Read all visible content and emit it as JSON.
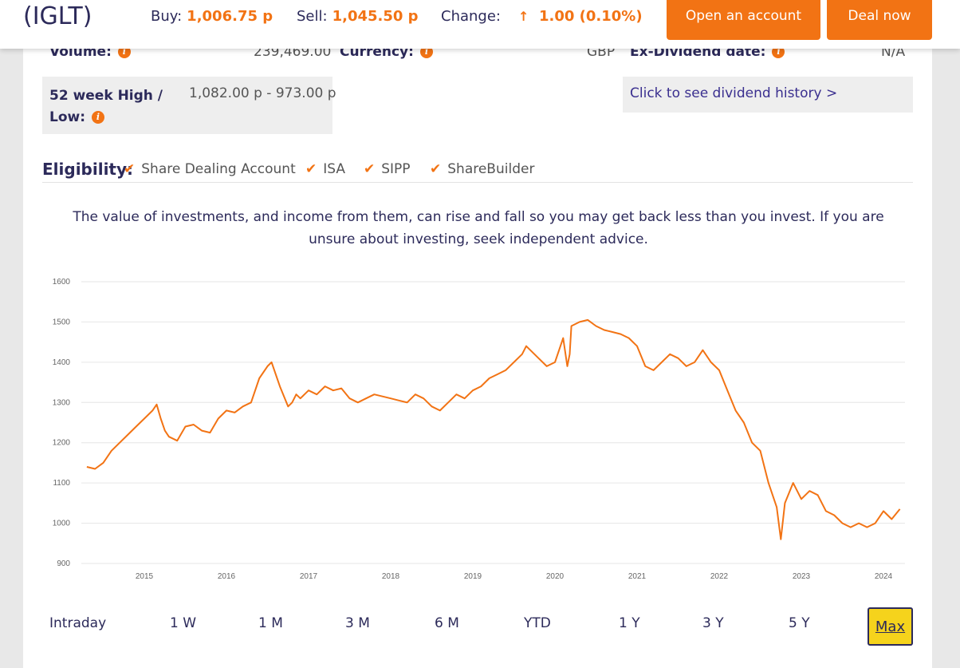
{
  "header": {
    "ticker": "(IGLT)",
    "buy_label": "Buy:",
    "buy_value": "1,006.75 p",
    "sell_label": "Sell:",
    "sell_value": "1,045.50 p",
    "change_label": "Change:",
    "change_value": "1.00 (0.10%)",
    "change_direction": "up",
    "open_account_label": "Open an account",
    "deal_now_label": "Deal now"
  },
  "stats": {
    "volume_label": "Volume:",
    "volume_value": "239,469.00",
    "currency_label": "Currency:",
    "currency_value": "GBP",
    "exdiv_label": "Ex-Dividend date:",
    "exdiv_value": "N/A",
    "week52_label_line1": "52 week High /",
    "week52_label_line2": "Low:",
    "week52_value": "1,082.00 p - 973.00 p",
    "dividend_link": "Click to see dividend history >"
  },
  "eligibility": {
    "label": "Eligibility:",
    "items": [
      "Share Dealing Account",
      "ISA",
      "SIPP",
      "ShareBuilder"
    ]
  },
  "disclaimer": "The value of investments, and income from them, can rise and fall so you may get back less than you invest. If you are unsure about investing, seek independent advice.",
  "ranges": {
    "items": [
      "Intraday",
      "1 W",
      "1 M",
      "3 M",
      "6 M",
      "YTD",
      "1 Y",
      "3 Y",
      "5 Y"
    ],
    "active": "Max"
  },
  "colors": {
    "accent": "#f27314",
    "navy": "#2c2a5a",
    "highlight": "#f5d31c"
  },
  "chart_data": {
    "type": "line",
    "title": "",
    "xlabel": "",
    "ylabel": "",
    "ylim": [
      900,
      1600
    ],
    "yticks": [
      900,
      1000,
      1100,
      1200,
      1300,
      1400,
      1500,
      1600
    ],
    "xticks": [
      "2015",
      "2016",
      "2017",
      "2018",
      "2019",
      "2020",
      "2021",
      "2022",
      "2023",
      "2024"
    ],
    "grid": true,
    "series": [
      {
        "x": [
          2014.3,
          2014.4,
          2014.5,
          2014.6,
          2014.7,
          2014.8,
          2014.9,
          2015.0,
          2015.1,
          2015.15,
          2015.2,
          2015.25,
          2015.3,
          2015.4,
          2015.5,
          2015.6,
          2015.7,
          2015.8,
          2015.9,
          2016.0,
          2016.1,
          2016.2,
          2016.3,
          2016.4,
          2016.5,
          2016.55,
          2016.6,
          2016.65,
          2016.75,
          2016.8,
          2016.85,
          2016.9,
          2017.0,
          2017.1,
          2017.2,
          2017.3,
          2017.4,
          2017.5,
          2017.6,
          2017.7,
          2017.8,
          2017.9,
          2018.0,
          2018.1,
          2018.2,
          2018.3,
          2018.4,
          2018.5,
          2018.6,
          2018.7,
          2018.8,
          2018.9,
          2019.0,
          2019.1,
          2019.2,
          2019.3,
          2019.4,
          2019.5,
          2019.6,
          2019.65,
          2019.7,
          2019.8,
          2019.9,
          2020.0,
          2020.1,
          2020.15,
          2020.18,
          2020.2,
          2020.3,
          2020.4,
          2020.5,
          2020.6,
          2020.7,
          2020.8,
          2020.9,
          2021.0,
          2021.1,
          2021.2,
          2021.3,
          2021.4,
          2021.5,
          2021.6,
          2021.7,
          2021.8,
          2021.9,
          2022.0,
          2022.1,
          2022.2,
          2022.3,
          2022.4,
          2022.5,
          2022.6,
          2022.7,
          2022.75,
          2022.8,
          2022.9,
          2023.0,
          2023.1,
          2023.2,
          2023.3,
          2023.4,
          2023.5,
          2023.6,
          2023.7,
          2023.8,
          2023.9,
          2024.0,
          2024.1,
          2024.2
        ],
        "values": [
          1140,
          1135,
          1150,
          1180,
          1200,
          1220,
          1240,
          1260,
          1280,
          1295,
          1260,
          1230,
          1215,
          1205,
          1240,
          1245,
          1230,
          1225,
          1260,
          1280,
          1275,
          1290,
          1300,
          1360,
          1390,
          1400,
          1370,
          1340,
          1290,
          1300,
          1320,
          1310,
          1330,
          1320,
          1340,
          1330,
          1335,
          1310,
          1300,
          1310,
          1320,
          1315,
          1310,
          1305,
          1300,
          1320,
          1310,
          1290,
          1280,
          1300,
          1320,
          1310,
          1330,
          1340,
          1360,
          1370,
          1380,
          1400,
          1420,
          1440,
          1430,
          1410,
          1390,
          1400,
          1460,
          1390,
          1420,
          1490,
          1500,
          1505,
          1490,
          1480,
          1475,
          1470,
          1460,
          1440,
          1390,
          1380,
          1400,
          1420,
          1410,
          1390,
          1400,
          1430,
          1400,
          1380,
          1330,
          1280,
          1250,
          1200,
          1180,
          1100,
          1040,
          960,
          1050,
          1100,
          1060,
          1080,
          1070,
          1030,
          1020,
          1000,
          990,
          1000,
          990,
          1000,
          1030,
          1010,
          1035
        ]
      }
    ]
  }
}
